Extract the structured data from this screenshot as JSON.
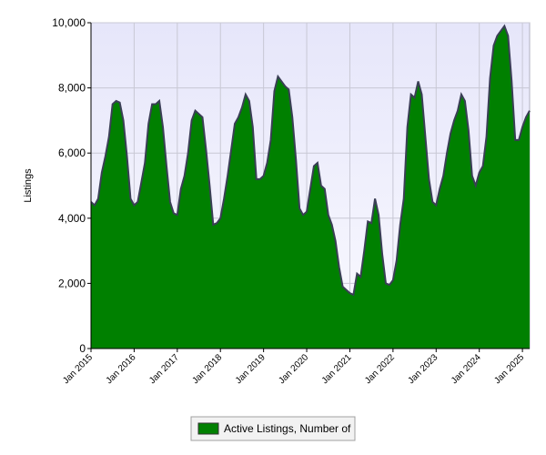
{
  "chart_data": {
    "type": "area",
    "y_label": "Listings",
    "x": [
      "2015-01",
      "2015-02",
      "2015-03",
      "2015-04",
      "2015-05",
      "2015-06",
      "2015-07",
      "2015-08",
      "2015-09",
      "2015-10",
      "2015-11",
      "2015-12",
      "2016-01",
      "2016-02",
      "2016-03",
      "2016-04",
      "2016-05",
      "2016-06",
      "2016-07",
      "2016-08",
      "2016-09",
      "2016-10",
      "2016-11",
      "2016-12",
      "2017-01",
      "2017-02",
      "2017-03",
      "2017-04",
      "2017-05",
      "2017-06",
      "2017-07",
      "2017-08",
      "2017-09",
      "2017-10",
      "2017-11",
      "2017-12",
      "2018-01",
      "2018-02",
      "2018-03",
      "2018-04",
      "2018-05",
      "2018-06",
      "2018-07",
      "2018-08",
      "2018-09",
      "2018-10",
      "2018-11",
      "2018-12",
      "2019-01",
      "2019-02",
      "2019-03",
      "2019-04",
      "2019-05",
      "2019-06",
      "2019-07",
      "2019-08",
      "2019-09",
      "2019-10",
      "2019-11",
      "2019-12",
      "2020-01",
      "2020-02",
      "2020-03",
      "2020-04",
      "2020-05",
      "2020-06",
      "2020-07",
      "2020-08",
      "2020-09",
      "2020-10",
      "2020-11",
      "2020-12",
      "2021-01",
      "2021-02",
      "2021-03",
      "2021-04",
      "2021-05",
      "2021-06",
      "2021-07",
      "2021-08",
      "2021-09",
      "2021-10",
      "2021-11",
      "2021-12",
      "2022-01",
      "2022-02",
      "2022-03",
      "2022-04",
      "2022-05",
      "2022-06",
      "2022-07",
      "2022-08",
      "2022-09",
      "2022-10",
      "2022-11",
      "2022-12",
      "2023-01",
      "2023-02",
      "2023-03",
      "2023-04",
      "2023-05",
      "2023-06",
      "2023-07",
      "2023-08",
      "2023-09",
      "2023-10",
      "2023-11",
      "2023-12",
      "2024-01",
      "2024-02",
      "2024-03",
      "2024-04",
      "2024-05",
      "2024-06",
      "2024-07",
      "2024-08",
      "2024-09",
      "2024-10",
      "2024-11",
      "2024-12",
      "2025-01",
      "2025-02",
      "2025-03"
    ],
    "series": [
      {
        "name": "Active Listings, Number of",
        "color": "#008000",
        "values": [
          4500,
          4400,
          4600,
          5400,
          5900,
          6500,
          7500,
          7600,
          7550,
          7000,
          5900,
          4600,
          4400,
          4500,
          5100,
          5700,
          6900,
          7500,
          7500,
          7600,
          6800,
          5600,
          4500,
          4150,
          4100,
          4900,
          5300,
          6000,
          7000,
          7300,
          7200,
          7100,
          6100,
          5000,
          3800,
          3850,
          4000,
          4600,
          5300,
          6100,
          6900,
          7100,
          7400,
          7800,
          7600,
          6800,
          5200,
          5200,
          5300,
          5700,
          6400,
          7900,
          8350,
          8200,
          8050,
          7950,
          7100,
          5800,
          4300,
          4100,
          4200,
          4900,
          5600,
          5700,
          5000,
          4900,
          4100,
          3800,
          3300,
          2500,
          1900,
          1800,
          1700,
          1650,
          2300,
          2200,
          3000,
          3900,
          3850,
          4600,
          4100,
          2900,
          2000,
          1950,
          2100,
          2700,
          3800,
          4600,
          6800,
          7800,
          7700,
          8200,
          7800,
          6500,
          5200,
          4500,
          4400,
          4900,
          5300,
          6000,
          6600,
          7000,
          7300,
          7800,
          7600,
          6700,
          5300,
          5000,
          5400,
          5600,
          6500,
          8300,
          9300,
          9600,
          9750,
          9900,
          9600,
          8200,
          6400,
          6400,
          6800,
          7100,
          7300
        ]
      }
    ],
    "xlim": [
      "2015-01",
      "2025-03"
    ],
    "xticks": [
      {
        "value": "2015-01",
        "label": "Jan 2015"
      },
      {
        "value": "2016-01",
        "label": "Jan 2016"
      },
      {
        "value": "2017-01",
        "label": "Jan 2017"
      },
      {
        "value": "2018-01",
        "label": "Jan 2018"
      },
      {
        "value": "2019-01",
        "label": "Jan 2019"
      },
      {
        "value": "2020-01",
        "label": "Jan 2020"
      },
      {
        "value": "2021-01",
        "label": "Jan 2021"
      },
      {
        "value": "2022-01",
        "label": "Jan 2022"
      },
      {
        "value": "2023-01",
        "label": "Jan 2023"
      },
      {
        "value": "2024-01",
        "label": "Jan 2024"
      },
      {
        "value": "2025-01",
        "label": "Jan 2025"
      }
    ],
    "ylim": [
      0,
      10000
    ],
    "yticks": [
      0,
      {
        "value": 2000,
        "label": "2,000"
      },
      {
        "value": 4000,
        "label": "4,000"
      },
      {
        "value": 6000,
        "label": "6,000"
      },
      {
        "value": 8000,
        "label": "8,000"
      },
      {
        "value": 10000,
        "label": "10,000"
      }
    ],
    "grid": true,
    "legend": "bottom"
  }
}
